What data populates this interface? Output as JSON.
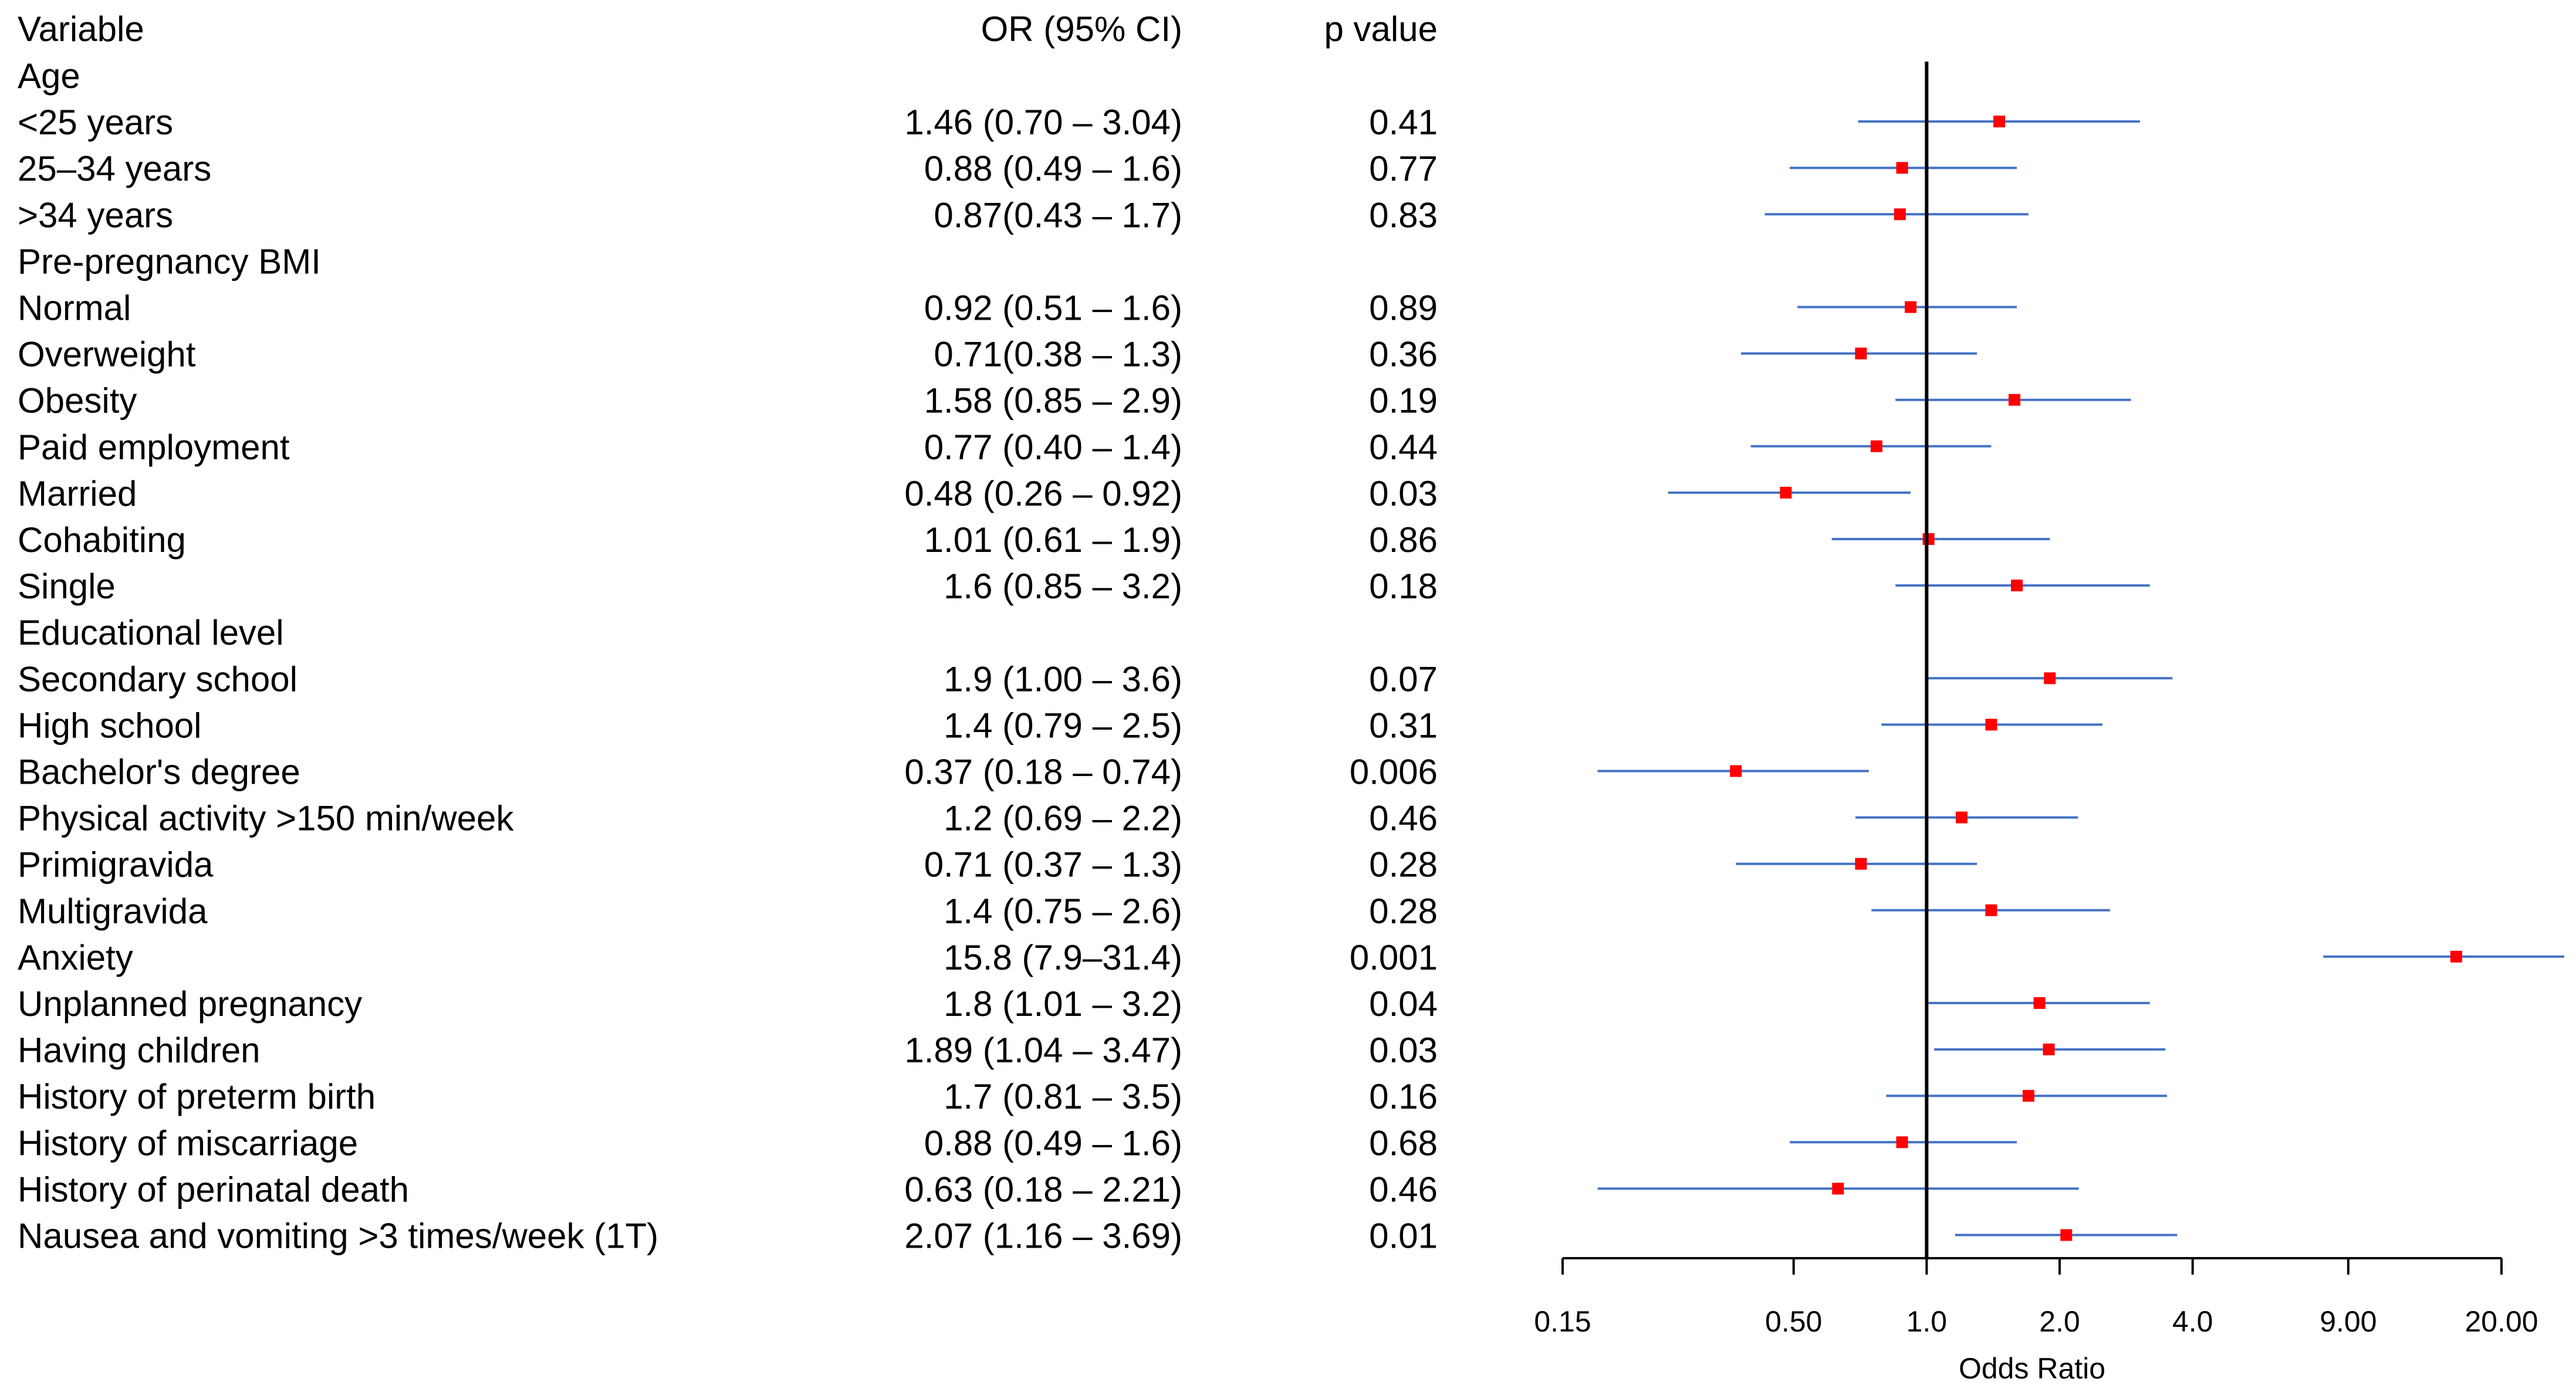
{
  "chart_data": {
    "type": "forest",
    "xlabel": "Odds Ratio",
    "xscale": "log",
    "xlim": [
      0.15,
      20.0
    ],
    "reference_line": 1.0,
    "x_ticks": [
      {
        "value": 0.15,
        "label": "0.15"
      },
      {
        "value": 0.5,
        "label": "0.50"
      },
      {
        "value": 1.0,
        "label": "1.0"
      },
      {
        "value": 2.0,
        "label": "2.0"
      },
      {
        "value": 4.0,
        "label": "4.0"
      },
      {
        "value": 9.0,
        "label": "9.00"
      },
      {
        "value": 20.0,
        "label": "20.00"
      }
    ],
    "headers": {
      "variable": "Variable",
      "or_ci": "OR (95% CI)",
      "p": "p value"
    },
    "colors": {
      "point": "#ff0000",
      "ci": "#4472c4",
      "ref": "#000000"
    },
    "rows": [
      {
        "label": "Age",
        "header": true
      },
      {
        "label": "<25 years",
        "or_text": "1.46 (0.70 – 3.04)",
        "p": "0.41",
        "or": 1.46,
        "lo": 0.7,
        "hi": 3.04
      },
      {
        "label": "25–34 years",
        "or_text": "0.88 (0.49 – 1.6)",
        "p": "0.77",
        "or": 0.88,
        "lo": 0.49,
        "hi": 1.6
      },
      {
        "label": ">34 years",
        "or_text": "0.87(0.43 – 1.7)",
        "p": "0.83",
        "or": 0.87,
        "lo": 0.43,
        "hi": 1.7
      },
      {
        "label": "Pre-pregnancy BMI",
        "header": true
      },
      {
        "label": "Normal",
        "or_text": "0.92 (0.51  – 1.6)",
        "p": "0.89",
        "or": 0.92,
        "lo": 0.51,
        "hi": 1.6
      },
      {
        "label": "Overweight",
        "or_text": "0.71(0.38 – 1.3)",
        "p": "0.36",
        "or": 0.71,
        "lo": 0.38,
        "hi": 1.3
      },
      {
        "label": "Obesity",
        "or_text": "1.58 (0.85 – 2.9)",
        "p": "0.19",
        "or": 1.58,
        "lo": 0.85,
        "hi": 2.9
      },
      {
        "label": "Paid employment",
        "or_text": "0.77 (0.40 – 1.4)",
        "p": "0.44",
        "or": 0.77,
        "lo": 0.4,
        "hi": 1.4
      },
      {
        "label": "Married",
        "or_text": "0.48 (0.26 – 0.92)",
        "p": "0.03",
        "or": 0.48,
        "lo": 0.26,
        "hi": 0.92
      },
      {
        "label": "Cohabiting",
        "or_text": "1.01 (0.61 – 1.9)",
        "p": "0.86",
        "or": 1.01,
        "lo": 0.61,
        "hi": 1.9
      },
      {
        "label": "Single",
        "or_text": "1.6 (0.85 – 3.2)",
        "p": "0.18",
        "or": 1.6,
        "lo": 0.85,
        "hi": 3.2
      },
      {
        "label": "Educational level",
        "header": true
      },
      {
        "label": "Secondary school",
        "or_text": "1.9 (1.00 – 3.6)",
        "p": "0.07",
        "or": 1.9,
        "lo": 1.0,
        "hi": 3.6
      },
      {
        "label": "High school",
        "or_text": "1.4 (0.79 – 2.5)",
        "p": "0.31",
        "or": 1.4,
        "lo": 0.79,
        "hi": 2.5
      },
      {
        "label": "Bachelor's degree",
        "or_text": "0.37 (0.18 – 0.74)",
        "p": "0.006",
        "or": 0.37,
        "lo": 0.18,
        "hi": 0.74
      },
      {
        "label": "Physical activity >150 min/week",
        "or_text": "1.2 (0.69 – 2.2)",
        "p": "0.46",
        "or": 1.2,
        "lo": 0.69,
        "hi": 2.2
      },
      {
        "label": "Primigravida",
        "or_text": "0.71 (0.37 – 1.3)",
        "p": "0.28",
        "or": 0.71,
        "lo": 0.37,
        "hi": 1.3
      },
      {
        "label": "Multigravida",
        "or_text": "1.4 (0.75 – 2.6)",
        "p": "0.28",
        "or": 1.4,
        "lo": 0.75,
        "hi": 2.6
      },
      {
        "label": "Anxiety",
        "or_text": "15.8 (7.9–31.4)",
        "p": "0.001",
        "or": 15.8,
        "lo": 7.9,
        "hi": 31.4
      },
      {
        "label": "Unplanned pregnancy",
        "or_text": "1.8 (1.01 – 3.2)",
        "p": "0.04",
        "or": 1.8,
        "lo": 1.01,
        "hi": 3.2
      },
      {
        "label": "Having children",
        "or_text": "1.89 (1.04 – 3.47)",
        "p": "0.03",
        "or": 1.89,
        "lo": 1.04,
        "hi": 3.47
      },
      {
        "label": "History of preterm birth",
        "or_text": "1.7 (0.81 – 3.5)",
        "p": "0.16",
        "or": 1.7,
        "lo": 0.81,
        "hi": 3.5
      },
      {
        "label": "History of miscarriage",
        "or_text": "0.88 (0.49 – 1.6)",
        "p": "0.68",
        "or": 0.88,
        "lo": 0.49,
        "hi": 1.6
      },
      {
        "label": "History of perinatal death",
        "or_text": "0.63 (0.18 – 2.21)",
        "p": "0.46",
        "or": 0.63,
        "lo": 0.18,
        "hi": 2.21
      },
      {
        "label": "Nausea and vomiting >3 times/week (1T)",
        "or_text": "2.07 (1.16 – 3.69)",
        "p": "0.01",
        "or": 2.07,
        "lo": 1.16,
        "hi": 3.69
      }
    ]
  }
}
